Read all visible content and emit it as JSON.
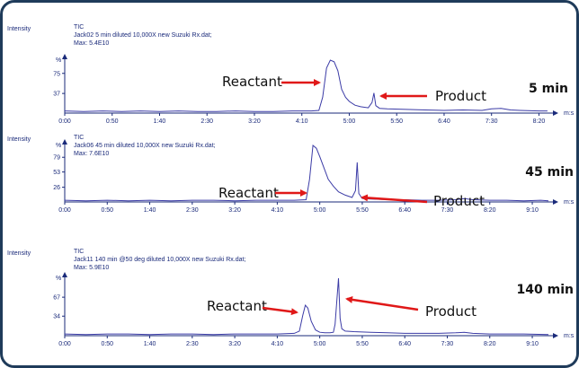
{
  "chart_data": [
    {
      "type": "line",
      "y_axis_title": "Intensity",
      "title": "TIC",
      "subtitle": "Jack02 5 min diluted 10,000X  new Suzuki Rx.dat;",
      "max_label": "Max: 5.4E10",
      "y_label": "%",
      "x_label": "m:s",
      "tag": "5 min",
      "annotations": [
        "Reactant",
        "Product"
      ],
      "color": "#3b3ba6",
      "xlim": [
        0,
        510
      ],
      "ylim": [
        0,
        100
      ],
      "xticks": [
        {
          "value": 0,
          "label": "0:00"
        },
        {
          "value": 50,
          "label": "0:50"
        },
        {
          "value": 100,
          "label": "1:40"
        },
        {
          "value": 150,
          "label": "2:30"
        },
        {
          "value": 200,
          "label": "3:20"
        },
        {
          "value": 250,
          "label": "4:10"
        },
        {
          "value": 300,
          "label": "5:00"
        },
        {
          "value": 350,
          "label": "5:50"
        },
        {
          "value": 400,
          "label": "6:40"
        },
        {
          "value": 450,
          "label": "7:30"
        },
        {
          "value": 500,
          "label": "8:20"
        }
      ],
      "yticks": [
        37,
        75
      ],
      "x": [
        0,
        20,
        40,
        60,
        80,
        100,
        120,
        140,
        160,
        180,
        200,
        220,
        240,
        260,
        268,
        272,
        276,
        280,
        284,
        288,
        292,
        296,
        300,
        306,
        312,
        320,
        324,
        326,
        328,
        332,
        340,
        360,
        380,
        400,
        420,
        440,
        450,
        460,
        470,
        480,
        500,
        509
      ],
      "values": [
        4,
        3,
        4,
        3,
        4,
        3,
        4,
        3,
        3,
        4,
        3,
        3,
        4,
        4,
        5,
        30,
        85,
        100,
        97,
        80,
        45,
        30,
        22,
        15,
        12,
        10,
        20,
        38,
        14,
        9,
        8,
        7,
        6,
        5,
        6,
        5,
        8,
        9,
        6,
        5,
        4,
        4
      ]
    },
    {
      "type": "line",
      "y_axis_title": "Intensity",
      "title": "TIC",
      "subtitle": "Jack06 45 min diluted 10,000X  new Suzuki Rx.dat;",
      "max_label": "Max: 7.6E10",
      "y_label": "%",
      "x_label": "m:s",
      "tag": "45 min",
      "annotations": [
        "Reactant",
        "Product"
      ],
      "color": "#3b3ba6",
      "xlim": [
        0,
        569
      ],
      "ylim": [
        0,
        100
      ],
      "xticks": [
        {
          "value": 0,
          "label": "0:00"
        },
        {
          "value": 50,
          "label": "0:50"
        },
        {
          "value": 100,
          "label": "1:40"
        },
        {
          "value": 150,
          "label": "2:30"
        },
        {
          "value": 200,
          "label": "3:20"
        },
        {
          "value": 250,
          "label": "4:10"
        },
        {
          "value": 300,
          "label": "5:00"
        },
        {
          "value": 350,
          "label": "5:50"
        },
        {
          "value": 400,
          "label": "6:40"
        },
        {
          "value": 450,
          "label": "7:30"
        },
        {
          "value": 500,
          "label": "8:20"
        },
        {
          "value": 550,
          "label": "9:10"
        }
      ],
      "yticks": [
        26,
        53,
        79
      ],
      "x": [
        0,
        25,
        50,
        75,
        100,
        125,
        150,
        175,
        200,
        225,
        250,
        270,
        284,
        288,
        292,
        296,
        300,
        305,
        310,
        316,
        322,
        330,
        338,
        342,
        344,
        346,
        350,
        360,
        380,
        400,
        420,
        440,
        460,
        470,
        480,
        500,
        520,
        540,
        560,
        569
      ],
      "values": [
        3,
        2,
        3,
        2,
        3,
        2,
        3,
        3,
        2,
        3,
        3,
        3,
        4,
        40,
        100,
        95,
        80,
        60,
        40,
        28,
        18,
        12,
        8,
        20,
        70,
        15,
        6,
        5,
        4,
        4,
        3,
        3,
        4,
        6,
        4,
        3,
        3,
        2,
        3,
        2
      ]
    },
    {
      "type": "line",
      "y_axis_title": "Intensity",
      "title": "TIC",
      "subtitle": "Jack11 140 min @50 deg diluted 10,000X  new Suzuki Rx.dat;",
      "max_label": "Max: 5.9E10",
      "y_label": "%",
      "x_label": "m:s",
      "tag": "140 min",
      "annotations": [
        "Reactant",
        "Product"
      ],
      "color": "#3b3ba6",
      "xlim": [
        0,
        569
      ],
      "ylim": [
        0,
        100
      ],
      "xticks": [
        {
          "value": 0,
          "label": "0:00"
        },
        {
          "value": 50,
          "label": "0:50"
        },
        {
          "value": 100,
          "label": "1:40"
        },
        {
          "value": 150,
          "label": "2:30"
        },
        {
          "value": 200,
          "label": "3:20"
        },
        {
          "value": 250,
          "label": "4:10"
        },
        {
          "value": 300,
          "label": "5:00"
        },
        {
          "value": 350,
          "label": "5:50"
        },
        {
          "value": 400,
          "label": "6:40"
        },
        {
          "value": 450,
          "label": "7:30"
        },
        {
          "value": 500,
          "label": "8:20"
        },
        {
          "value": 550,
          "label": "9:10"
        }
      ],
      "yticks": [
        34,
        67
      ],
      "x": [
        0,
        25,
        50,
        75,
        100,
        125,
        150,
        175,
        200,
        225,
        250,
        270,
        276,
        280,
        283,
        286,
        290,
        295,
        300,
        306,
        312,
        316,
        318,
        320,
        322,
        324,
        326,
        330,
        340,
        360,
        380,
        400,
        420,
        440,
        460,
        470,
        480,
        500,
        540,
        569
      ],
      "values": [
        3,
        2,
        3,
        3,
        2,
        3,
        3,
        2,
        3,
        3,
        3,
        4,
        8,
        35,
        53,
        48,
        25,
        10,
        6,
        5,
        5,
        6,
        20,
        60,
        100,
        30,
        12,
        8,
        7,
        6,
        5,
        4,
        4,
        4,
        5,
        6,
        4,
        3,
        3,
        2
      ]
    }
  ]
}
